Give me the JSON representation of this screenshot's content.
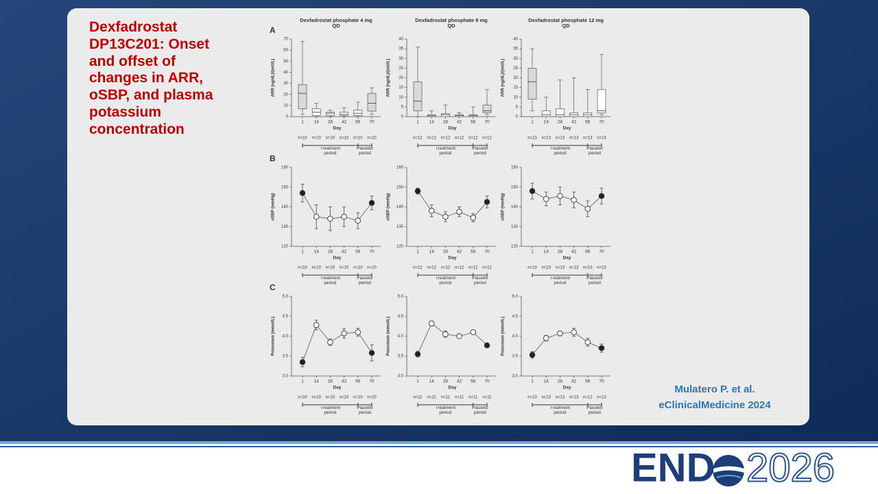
{
  "slide_title": "Dexfadrostat DP13C201: Onset and offset of changes in ARR, oSBP, and plasma potassium concentration",
  "citation": [
    "Mulatero P. et al.",
    "eClinicalMedicine 2024"
  ],
  "logo": [
    "END",
    "2026"
  ],
  "chart_data": [
    {
      "type": "box",
      "panel": "A",
      "title": "Dexfadrostat phosphate 4 mg QD",
      "ylabel": "ARR (ng/dL)/(mU/L)",
      "xlabel": "Day",
      "categories": [
        "1",
        "14",
        "28",
        "42",
        "56",
        "70"
      ],
      "ylim": [
        0,
        70
      ],
      "yticks": [
        0,
        10,
        20,
        30,
        40,
        50,
        60,
        70
      ],
      "min": [
        2,
        0,
        0,
        0,
        0,
        2
      ],
      "q1": [
        7,
        1,
        1,
        1,
        1,
        5
      ],
      "median": [
        21,
        4,
        3,
        2,
        3,
        12
      ],
      "q3": [
        29,
        7,
        4,
        4,
        6,
        21
      ],
      "max": [
        68,
        12,
        6,
        8,
        13,
        26
      ],
      "colors": [
        "#d9d9d9",
        "#ffffff",
        "#ffffff",
        "#ffffff",
        "#ffffff",
        "#d9d9d9"
      ],
      "n_labels": [
        "n=10",
        "n=10",
        "n=10",
        "n=10",
        "n=10",
        "n=10"
      ],
      "periods": [
        "Treatment period",
        "Placebo period"
      ]
    },
    {
      "type": "box",
      "title": "Dexfadrostat phosphate 8 mg QD",
      "ylabel": "ARR (ng/dL)/(mU/L)",
      "xlabel": "Day",
      "categories": [
        "1",
        "14",
        "28",
        "42",
        "56",
        "70"
      ],
      "ylim": [
        0,
        40
      ],
      "yticks": [
        0,
        5,
        10,
        15,
        20,
        25,
        30,
        35,
        40
      ],
      "min": [
        0,
        0,
        0,
        0,
        0,
        1
      ],
      "q1": [
        3,
        0,
        0,
        0,
        0,
        2
      ],
      "median": [
        8,
        0.5,
        1,
        0.5,
        0.5,
        3
      ],
      "q3": [
        18,
        1,
        1.5,
        1,
        1,
        6
      ],
      "max": [
        36,
        3,
        6,
        2,
        5,
        14
      ],
      "colors": [
        "#d9d9d9",
        "#ffffff",
        "#ffffff",
        "#ffffff",
        "#ffffff",
        "#d9d9d9"
      ],
      "n_labels": [
        "n=12",
        "n=12",
        "n=12",
        "n=12",
        "n=12",
        "n=12"
      ],
      "periods": [
        "Treatment period",
        "Placebo period"
      ]
    },
    {
      "type": "box",
      "title": "Dexfadrostat phosphate 12 mg QD",
      "ylabel": "ARR (ng/dL)/(mU/L)",
      "xlabel": "Day",
      "categories": [
        "1",
        "14",
        "28",
        "42",
        "56",
        "70"
      ],
      "ylim": [
        0,
        40
      ],
      "yticks": [
        0,
        5,
        10,
        15,
        20,
        25,
        30,
        35,
        40
      ],
      "min": [
        3,
        0,
        0,
        0,
        0,
        1
      ],
      "q1": [
        9,
        0,
        0,
        0,
        0,
        2
      ],
      "median": [
        18,
        1,
        1,
        1,
        1,
        3
      ],
      "q3": [
        25,
        3,
        4,
        2,
        2,
        14
      ],
      "max": [
        35,
        10,
        19,
        20,
        14,
        32
      ],
      "colors": [
        "#d9d9d9",
        "#ffffff",
        "#ffffff",
        "#ffffff",
        "#ffffff",
        "#ffffff"
      ],
      "n_labels": [
        "n=13",
        "n=13",
        "n=13",
        "n=13",
        "n=13",
        "n=13"
      ],
      "periods": [
        "Treatment period",
        "Placebo period"
      ]
    },
    {
      "type": "line",
      "panel": "B",
      "ylabel": "oSBP (mmHg)",
      "xlabel": "Day",
      "categories": [
        "1",
        "14",
        "28",
        "42",
        "56",
        "70"
      ],
      "ylim": [
        120,
        160
      ],
      "yticks": [
        120,
        130,
        140,
        150,
        160
      ],
      "values": [
        147,
        135,
        134,
        135,
        133,
        142
      ],
      "errors": [
        4.5,
        6,
        6,
        5,
        4,
        3.5
      ],
      "color": "#666666",
      "marker_colors": [
        "#222222",
        "#ffffff",
        "#ffffff",
        "#ffffff",
        "#ffffff",
        "#222222"
      ],
      "n_labels": [
        "n=10",
        "n=10",
        "n=10",
        "n=10",
        "n=10",
        "n=10"
      ],
      "periods": [
        "Treatment period",
        "Placebo period"
      ]
    },
    {
      "type": "line",
      "ylabel": "oSBP (mmHg)",
      "xlabel": "Day",
      "categories": [
        "1",
        "14",
        "28",
        "42",
        "56",
        "70"
      ],
      "ylim": [
        120,
        160
      ],
      "yticks": [
        120,
        130,
        140,
        150,
        160
      ],
      "values": [
        148,
        138,
        135,
        137.5,
        134.5,
        142.5
      ],
      "errors": [
        1.5,
        3,
        2.5,
        2.5,
        2,
        3
      ],
      "color": "#666666",
      "marker_colors": [
        "#222222",
        "#ffffff",
        "#ffffff",
        "#ffffff",
        "#ffffff",
        "#222222"
      ],
      "n_labels": [
        "n=12",
        "n=12",
        "n=12",
        "n=12",
        "n=12",
        "n=12"
      ],
      "periods": [
        "Treatment period",
        "Placebo period"
      ]
    },
    {
      "type": "line",
      "ylabel": "oSBP (mmHg)",
      "xlabel": "Day",
      "categories": [
        "1",
        "14",
        "28",
        "42",
        "56",
        "70"
      ],
      "ylim": [
        120,
        160
      ],
      "yticks": [
        120,
        130,
        140,
        150,
        160
      ],
      "values": [
        148,
        144,
        145.5,
        143.5,
        139,
        145.5
      ],
      "errors": [
        4,
        3.5,
        4.5,
        4,
        4,
        4
      ],
      "color": "#666666",
      "marker_colors": [
        "#222222",
        "#ffffff",
        "#ffffff",
        "#ffffff",
        "#ffffff",
        "#222222"
      ],
      "n_labels": [
        "n=13",
        "n=13",
        "n=13",
        "n=13",
        "n=13",
        "n=13"
      ],
      "periods": [
        "Treatment period",
        "Placebo period"
      ]
    },
    {
      "type": "line",
      "panel": "C",
      "ylabel": "Potassium (mmol/L)",
      "xlabel": "Day",
      "categories": [
        "1",
        "14",
        "28",
        "42",
        "56",
        "70"
      ],
      "ylim": [
        3,
        5
      ],
      "yticks": [
        {
          "value": 3,
          "label": "3.0"
        },
        3.5,
        {
          "value": 4,
          "label": "4.0"
        },
        4.5,
        {
          "value": 5,
          "label": "5.0"
        }
      ],
      "values": [
        3.35,
        4.28,
        3.85,
        4.07,
        4.1,
        3.58
      ],
      "errors": [
        0.12,
        0.12,
        0.08,
        0.12,
        0.1,
        0.2
      ],
      "color": "#666666",
      "marker_colors": [
        "#222222",
        "#ffffff",
        "#ffffff",
        "#ffffff",
        "#ffffff",
        "#222222"
      ],
      "n_labels": [
        "n=10",
        "n=10",
        "n=10",
        "n=10",
        "n=10",
        "n=10"
      ],
      "periods": [
        "Treatment period",
        "Placebo period"
      ]
    },
    {
      "type": "line",
      "ylabel": "Potassium (mmol/L)",
      "xlabel": "Day",
      "categories": [
        "1",
        "14",
        "28",
        "42",
        "56",
        "70"
      ],
      "ylim": [
        3,
        5
      ],
      "yticks": [
        {
          "value": 3,
          "label": "3.0"
        },
        3.5,
        {
          "value": 4,
          "label": "4.0"
        },
        4.5,
        {
          "value": 5,
          "label": "5.0"
        }
      ],
      "values": [
        3.55,
        4.32,
        4.05,
        4.0,
        4.1,
        3.77
      ],
      "errors": [
        0.07,
        0.06,
        0.08,
        0.05,
        0.04,
        0.06
      ],
      "color": "#666666",
      "marker_colors": [
        "#222222",
        "#ffffff",
        "#ffffff",
        "#ffffff",
        "#ffffff",
        "#222222"
      ],
      "n_labels": [
        "n=11",
        "n=11",
        "n=11",
        "n=11",
        "n=11",
        "n=11"
      ],
      "periods": [
        "Treatment period",
        "Placebo period"
      ]
    },
    {
      "type": "line",
      "ylabel": "Potassium (mmol/L)",
      "xlabel": "Day",
      "categories": [
        "1",
        "14",
        "28",
        "42",
        "56",
        "70"
      ],
      "ylim": [
        3,
        5
      ],
      "yticks": [
        {
          "value": 3,
          "label": "3.0"
        },
        3.5,
        {
          "value": 4,
          "label": "4.0"
        },
        4.5,
        {
          "value": 5,
          "label": "5.0"
        }
      ],
      "values": [
        3.53,
        3.95,
        4.07,
        4.1,
        3.85,
        3.7
      ],
      "errors": [
        0.08,
        0.07,
        0.06,
        0.1,
        0.1,
        0.1
      ],
      "color": "#666666",
      "marker_colors": [
        "#222222",
        "#ffffff",
        "#ffffff",
        "#ffffff",
        "#ffffff",
        "#222222"
      ],
      "n_labels": [
        "n=13",
        "n=13",
        "n=13",
        "n=13",
        "n=12",
        "n=13"
      ],
      "periods": [
        "Treatment period",
        "Placebo period"
      ]
    }
  ]
}
